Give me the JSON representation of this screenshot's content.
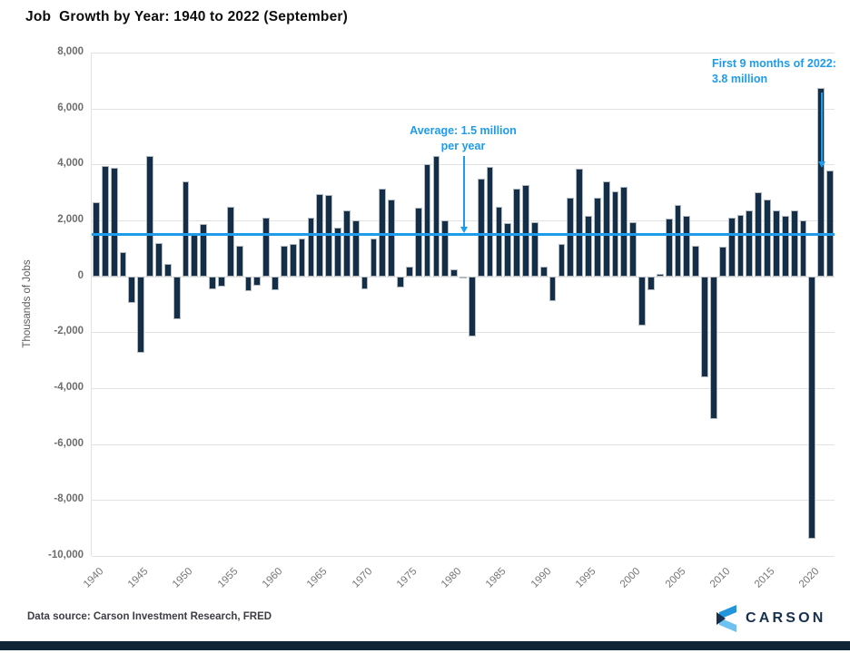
{
  "title": "Job  Growth by Year: 1940 to 2022 (September)",
  "annotations": {
    "average": {
      "line1": "Average: 1.5 million",
      "line2": "per year"
    },
    "first9": {
      "line1": "First 9 months of 2022:",
      "line2": "3.8 million"
    }
  },
  "footer": {
    "source": "Data source: Carson Investment Research, FRED",
    "brand": "CARSON"
  },
  "colors": {
    "bar": "#142e47",
    "accent_blue": "#1e9ceb",
    "gridline": "#e2e2e2",
    "brand_navy": "#16304d",
    "logo_blue_top": "#2196db",
    "logo_blue_bottom": "#6ec2f0",
    "bottom_bar": "#0e2537"
  },
  "chart_data": {
    "type": "bar",
    "title": "Job  Growth by Year: 1940 to 2022 (September)",
    "xlabel": "",
    "ylabel": "Thousands of Jobs",
    "ylim": [
      -10000,
      8000
    ],
    "ytick_step": 2000,
    "grid": "horizontal",
    "average_line_value": 1500,
    "xticks": [
      1940,
      1945,
      1950,
      1955,
      1960,
      1965,
      1970,
      1975,
      1980,
      1985,
      1990,
      1995,
      2000,
      2005,
      2010,
      2015,
      2020
    ],
    "years": [
      1940,
      1941,
      1942,
      1943,
      1944,
      1945,
      1946,
      1947,
      1948,
      1949,
      1950,
      1951,
      1952,
      1953,
      1954,
      1955,
      1956,
      1957,
      1958,
      1959,
      1960,
      1961,
      1962,
      1963,
      1964,
      1965,
      1966,
      1967,
      1968,
      1969,
      1970,
      1971,
      1972,
      1973,
      1974,
      1975,
      1976,
      1977,
      1978,
      1979,
      1980,
      1981,
      1982,
      1983,
      1984,
      1985,
      1986,
      1987,
      1988,
      1989,
      1990,
      1991,
      1992,
      1993,
      1994,
      1995,
      1996,
      1997,
      1998,
      1999,
      2000,
      2001,
      2002,
      2003,
      2004,
      2005,
      2006,
      2007,
      2008,
      2009,
      2010,
      2011,
      2012,
      2013,
      2014,
      2015,
      2016,
      2017,
      2018,
      2019,
      2020,
      2021,
      2022
    ],
    "values": [
      2650,
      3950,
      3870,
      850,
      -950,
      -2750,
      4300,
      1200,
      450,
      -1550,
      3400,
      1500,
      1870,
      -470,
      -380,
      2500,
      1100,
      -530,
      -330,
      2100,
      -500,
      1100,
      1150,
      1350,
      2100,
      2950,
      2900,
      1750,
      2350,
      2000,
      -450,
      1350,
      3150,
      2750,
      -400,
      350,
      2450,
      4000,
      4300,
      2000,
      240,
      -80,
      -2150,
      3500,
      3900,
      2500,
      1900,
      3150,
      3250,
      1950,
      330,
      -880,
      1150,
      2800,
      3850,
      2150,
      2800,
      3400,
      3050,
      3200,
      1950,
      -1750,
      -500,
      100,
      2050,
      2550,
      2150,
      1100,
      -3600,
      -5100,
      1050,
      2100,
      2200,
      2350,
      3000,
      2750,
      2350,
      2150,
      2350,
      2000,
      -9400,
      6750,
      3800
    ]
  }
}
